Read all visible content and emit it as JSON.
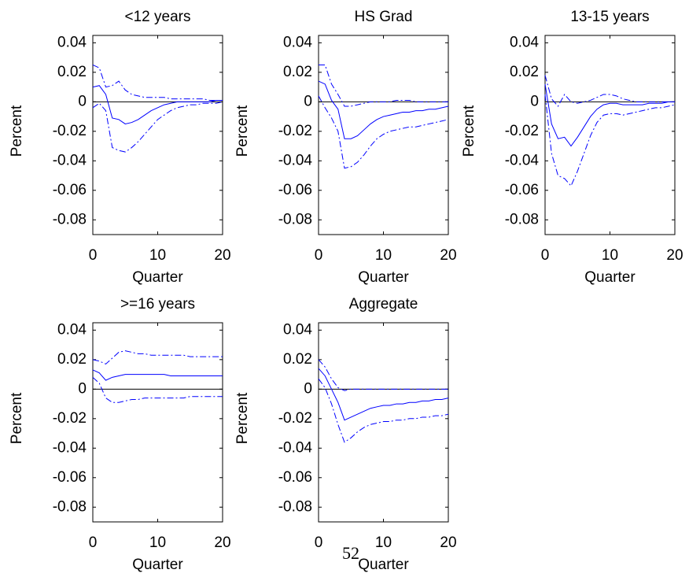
{
  "chart_data": [
    {
      "type": "line",
      "title": "<12 years",
      "xlabel": "Quarter",
      "ylabel": "Percent",
      "x": [
        0,
        1,
        2,
        3,
        4,
        5,
        6,
        7,
        8,
        9,
        10,
        11,
        12,
        13,
        14,
        15,
        16,
        17,
        18,
        19,
        20
      ],
      "xlim": [
        0,
        20
      ],
      "xticks": [
        0,
        10,
        20
      ],
      "ylim": [
        -0.09,
        0.045
      ],
      "yticks": [
        0.04,
        0.02,
        0,
        -0.02,
        -0.04,
        -0.06,
        -0.08
      ],
      "zero_line": true,
      "series": [
        {
          "color": "#0000ff",
          "style": "solid",
          "values": [
            0.01,
            0.011,
            0.005,
            -0.011,
            -0.012,
            -0.015,
            -0.014,
            -0.012,
            -0.009,
            -0.006,
            -0.004,
            -0.002,
            -0.001,
            0,
            0,
            0,
            0,
            0,
            0,
            0.001,
            0.001
          ]
        },
        {
          "color": "#0000ff",
          "style": "dashdot",
          "values": [
            0.025,
            0.023,
            0.01,
            0.011,
            0.014,
            0.008,
            0.005,
            0.004,
            0.003,
            0.003,
            0.003,
            0.003,
            0.002,
            0.002,
            0.002,
            0.002,
            0.002,
            0.002,
            0.001,
            0.001,
            0.001
          ]
        },
        {
          "color": "#0000ff",
          "style": "dashdot",
          "values": [
            -0.004,
            -0.001,
            -0.006,
            -0.031,
            -0.033,
            -0.034,
            -0.031,
            -0.027,
            -0.022,
            -0.017,
            -0.012,
            -0.009,
            -0.006,
            -0.004,
            -0.003,
            -0.002,
            -0.002,
            -0.001,
            -0.001,
            -0.001,
            0
          ]
        }
      ]
    },
    {
      "type": "line",
      "title": "HS Grad",
      "xlabel": "Quarter",
      "ylabel": "Percent",
      "x": [
        0,
        1,
        2,
        3,
        4,
        5,
        6,
        7,
        8,
        9,
        10,
        11,
        12,
        13,
        14,
        15,
        16,
        17,
        18,
        19,
        20
      ],
      "xlim": [
        0,
        20
      ],
      "xticks": [
        0,
        10,
        20
      ],
      "ylim": [
        -0.09,
        0.045
      ],
      "yticks": [
        0.04,
        0.02,
        0,
        -0.02,
        -0.04,
        -0.06,
        -0.08
      ],
      "zero_line": true,
      "series": [
        {
          "color": "#0000ff",
          "style": "solid",
          "values": [
            0.014,
            0.012,
            0.001,
            -0.005,
            -0.025,
            -0.025,
            -0.023,
            -0.019,
            -0.015,
            -0.012,
            -0.01,
            -0.009,
            -0.008,
            -0.007,
            -0.007,
            -0.006,
            -0.006,
            -0.005,
            -0.005,
            -0.004,
            -0.003
          ]
        },
        {
          "color": "#0000ff",
          "style": "dashdot",
          "values": [
            0.025,
            0.025,
            0.012,
            0.005,
            -0.003,
            -0.003,
            -0.002,
            -0.001,
            0,
            0,
            0,
            0,
            0.001,
            0.001,
            0.001,
            0,
            0,
            0,
            0,
            0,
            0
          ]
        },
        {
          "color": "#0000ff",
          "style": "dashdot",
          "values": [
            0.004,
            -0.004,
            -0.011,
            -0.02,
            -0.045,
            -0.044,
            -0.041,
            -0.036,
            -0.03,
            -0.025,
            -0.022,
            -0.02,
            -0.019,
            -0.018,
            -0.017,
            -0.017,
            -0.016,
            -0.015,
            -0.014,
            -0.013,
            -0.012
          ]
        }
      ]
    },
    {
      "type": "line",
      "title": "13-15 years",
      "xlabel": "Quarter",
      "ylabel": "Percent",
      "x": [
        0,
        1,
        2,
        3,
        4,
        5,
        6,
        7,
        8,
        9,
        10,
        11,
        12,
        13,
        14,
        15,
        16,
        17,
        18,
        19,
        20
      ],
      "xlim": [
        0,
        20
      ],
      "xticks": [
        0,
        10,
        20
      ],
      "ylim": [
        -0.09,
        0.045
      ],
      "yticks": [
        0.04,
        0.02,
        0,
        -0.02,
        -0.04,
        -0.06,
        -0.08
      ],
      "zero_line": true,
      "series": [
        {
          "color": "#0000ff",
          "style": "solid",
          "values": [
            0.012,
            -0.015,
            -0.025,
            -0.024,
            -0.03,
            -0.024,
            -0.017,
            -0.01,
            -0.005,
            -0.002,
            -0.001,
            -0.001,
            -0.002,
            -0.002,
            -0.002,
            -0.002,
            -0.001,
            -0.001,
            -0.001,
            0,
            0
          ]
        },
        {
          "color": "#0000ff",
          "style": "dashdot",
          "values": [
            0.018,
            0.002,
            -0.003,
            0.005,
            0,
            -0.001,
            0,
            0.001,
            0.003,
            0.005,
            0.005,
            0.004,
            0.002,
            0.001,
            0,
            0,
            0,
            0,
            0,
            0,
            0
          ]
        },
        {
          "color": "#0000ff",
          "style": "dashdot",
          "values": [
            0.005,
            -0.035,
            -0.05,
            -0.052,
            -0.057,
            -0.047,
            -0.035,
            -0.023,
            -0.014,
            -0.009,
            -0.008,
            -0.008,
            -0.009,
            -0.008,
            -0.007,
            -0.006,
            -0.005,
            -0.004,
            -0.004,
            -0.003,
            -0.002
          ]
        }
      ]
    },
    {
      "type": "line",
      "title": ">=16 years",
      "xlabel": "Quarter",
      "ylabel": "Percent",
      "x": [
        0,
        1,
        2,
        3,
        4,
        5,
        6,
        7,
        8,
        9,
        10,
        11,
        12,
        13,
        14,
        15,
        16,
        17,
        18,
        19,
        20
      ],
      "xlim": [
        0,
        20
      ],
      "xticks": [
        0,
        10,
        20
      ],
      "ylim": [
        -0.09,
        0.045
      ],
      "yticks": [
        0.04,
        0.02,
        0,
        -0.02,
        -0.04,
        -0.06,
        -0.08
      ],
      "zero_line": true,
      "series": [
        {
          "color": "#0000ff",
          "style": "solid",
          "values": [
            0.013,
            0.011,
            0.006,
            0.008,
            0.009,
            0.01,
            0.01,
            0.01,
            0.01,
            0.01,
            0.01,
            0.01,
            0.009,
            0.009,
            0.009,
            0.009,
            0.009,
            0.009,
            0.009,
            0.009,
            0.009
          ]
        },
        {
          "color": "#0000ff",
          "style": "dashdot",
          "values": [
            0.02,
            0.019,
            0.017,
            0.021,
            0.025,
            0.026,
            0.025,
            0.024,
            0.024,
            0.023,
            0.023,
            0.023,
            0.023,
            0.023,
            0.023,
            0.022,
            0.022,
            0.022,
            0.022,
            0.022,
            0.022
          ]
        },
        {
          "color": "#0000ff",
          "style": "dashdot",
          "values": [
            0.008,
            0.004,
            -0.006,
            -0.009,
            -0.009,
            -0.008,
            -0.007,
            -0.007,
            -0.006,
            -0.006,
            -0.006,
            -0.006,
            -0.006,
            -0.006,
            -0.006,
            -0.005,
            -0.005,
            -0.005,
            -0.005,
            -0.005,
            -0.005
          ]
        }
      ]
    },
    {
      "type": "line",
      "title": "Aggregate",
      "xlabel": "Quarter",
      "ylabel": "Percent",
      "x": [
        0,
        1,
        2,
        3,
        4,
        5,
        6,
        7,
        8,
        9,
        10,
        11,
        12,
        13,
        14,
        15,
        16,
        17,
        18,
        19,
        20
      ],
      "xlim": [
        0,
        20
      ],
      "xticks": [
        0,
        10,
        20
      ],
      "ylim": [
        -0.09,
        0.045
      ],
      "yticks": [
        0.04,
        0.02,
        0,
        -0.02,
        -0.04,
        -0.06,
        -0.08
      ],
      "zero_line": true,
      "series": [
        {
          "color": "#0000ff",
          "style": "solid",
          "values": [
            0.014,
            0.009,
            0,
            -0.009,
            -0.021,
            -0.019,
            -0.017,
            -0.015,
            -0.013,
            -0.012,
            -0.011,
            -0.011,
            -0.01,
            -0.01,
            -0.009,
            -0.009,
            -0.008,
            -0.008,
            -0.007,
            -0.007,
            -0.006
          ]
        },
        {
          "color": "#0000ff",
          "style": "dashdot",
          "values": [
            0.02,
            0.015,
            0.007,
            0.001,
            -0.001,
            0,
            0,
            0,
            0,
            0,
            0,
            0,
            0,
            0,
            0,
            0,
            0,
            0,
            0,
            0,
            0
          ]
        },
        {
          "color": "#0000ff",
          "style": "dashdot",
          "values": [
            0.007,
            0.001,
            -0.01,
            -0.024,
            -0.036,
            -0.033,
            -0.029,
            -0.026,
            -0.024,
            -0.023,
            -0.022,
            -0.022,
            -0.021,
            -0.021,
            -0.02,
            -0.02,
            -0.019,
            -0.019,
            -0.018,
            -0.018,
            -0.017
          ]
        }
      ]
    }
  ],
  "page_number": "52"
}
